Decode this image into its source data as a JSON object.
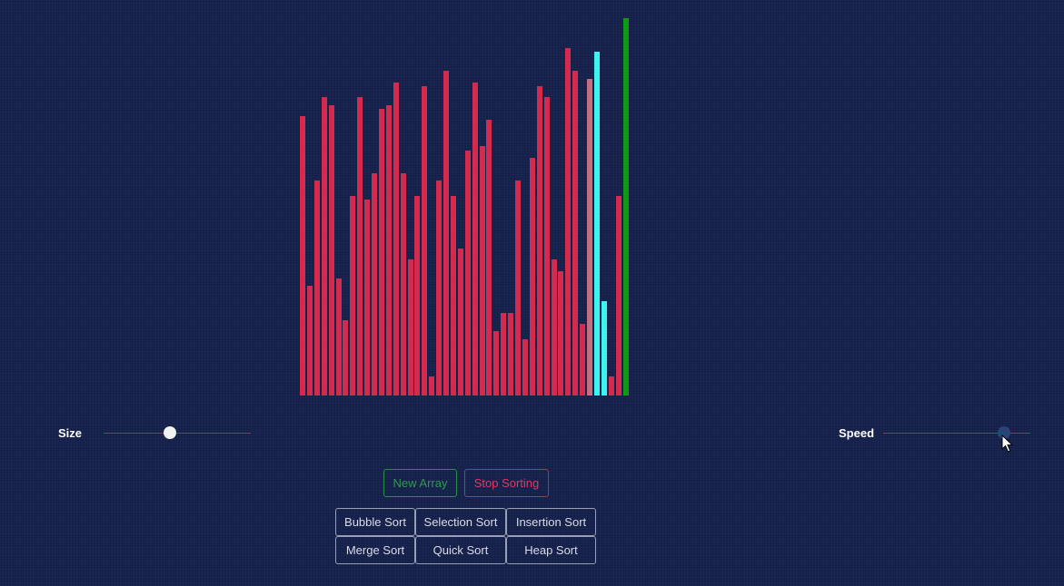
{
  "colors": {
    "background": "#14204a",
    "bar_default": "#d32a4e",
    "bar_light": "#c56e80",
    "bar_compare": "#3ef2ee",
    "bar_sorted": "#0f9a14",
    "slider_track": "#8a3a5c"
  },
  "array": {
    "max_value": 100,
    "values": [
      74,
      29,
      57,
      79,
      77,
      31,
      20,
      53,
      79,
      52,
      59,
      76,
      77,
      83,
      59,
      36,
      53,
      82,
      5,
      57,
      86,
      53,
      39,
      65,
      83,
      66,
      73,
      17,
      22,
      22,
      57,
      15,
      63,
      82,
      79,
      36,
      33,
      92,
      86,
      19,
      84,
      91,
      25,
      5,
      53,
      100
    ],
    "states": [
      "default",
      "default",
      "default",
      "default",
      "default",
      "default",
      "default",
      "default",
      "default",
      "default",
      "default",
      "default",
      "default",
      "default",
      "default",
      "default",
      "default",
      "default",
      "default",
      "default",
      "default",
      "default",
      "default",
      "default",
      "default",
      "default",
      "default",
      "default",
      "default",
      "default",
      "default",
      "default",
      "default",
      "default",
      "default",
      "default",
      "default",
      "default",
      "default",
      "default",
      "light",
      "compare",
      "compare",
      "default",
      "default",
      "sorted"
    ]
  },
  "size_slider": {
    "label": "Size",
    "value": 0.45
  },
  "speed_slider": {
    "label": "Speed",
    "value": 0.82
  },
  "controls": {
    "new_array_label": "New Array",
    "stop_label": "Stop Sorting"
  },
  "algorithms": {
    "bubble": "Bubble Sort",
    "selection": "Selection Sort",
    "insertion": "Insertion Sort",
    "merge": "Merge Sort",
    "quick": "Quick Sort",
    "heap": "Heap Sort"
  }
}
